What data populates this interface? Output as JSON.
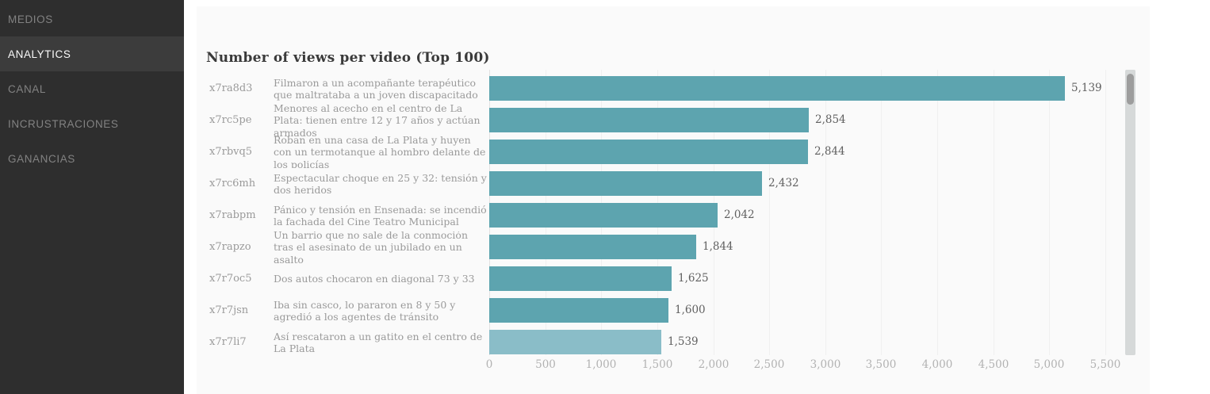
{
  "sidebar": {
    "items": [
      {
        "label": "MEDIOS",
        "active": false
      },
      {
        "label": "ANALYTICS",
        "active": true
      },
      {
        "label": "CANAL",
        "active": false
      },
      {
        "label": "INCRUSTRACIONES",
        "active": false
      },
      {
        "label": "GANANCIAS",
        "active": false
      }
    ]
  },
  "chart": {
    "title": "Number of views per video (Top 100)"
  },
  "chart_data": {
    "type": "bar",
    "orientation": "horizontal",
    "title": "Number of views per video (Top 100)",
    "xlim": [
      0,
      5620
    ],
    "x_tick_step": 500,
    "x_ticks": [
      "0",
      "500",
      "1,000",
      "1,500",
      "2,000",
      "2,500",
      "3,000",
      "3,500",
      "4,000",
      "4,500",
      "5,000",
      "5,500"
    ],
    "grid": true,
    "rows": [
      {
        "id": "x7ra8d3",
        "label": "Filmaron a un acompañante terapéutico que maltrataba a un joven discapacitado",
        "value": 5139,
        "value_label": "5,139",
        "color": "#5da4af"
      },
      {
        "id": "x7rc5pe",
        "label": "Menores al acecho en el centro de La Plata: tienen entre 12 y 17 años y actúan armados",
        "value": 2854,
        "value_label": "2,854",
        "color": "#5da4af"
      },
      {
        "id": "x7rbvq5",
        "label": "Roban en una casa de La Plata y huyen con un termotanque al hombro delante de los policías",
        "value": 2844,
        "value_label": "2,844",
        "color": "#5da4af"
      },
      {
        "id": "x7rc6mh",
        "label": "Espectacular choque en 25 y 32: tensión y dos heridos",
        "value": 2432,
        "value_label": "2,432",
        "color": "#5da4af"
      },
      {
        "id": "x7rabpm",
        "label": "Pánico y tensión en Ensenada: se incendió la fachada del Cine Teatro Municipal",
        "value": 2042,
        "value_label": "2,042",
        "color": "#5da4af"
      },
      {
        "id": "x7rapzo",
        "label": "Un barrio que no sale de la conmoción tras el asesinato de un jubilado en un asalto",
        "value": 1844,
        "value_label": "1,844",
        "color": "#5da4af"
      },
      {
        "id": "x7r7oc5",
        "label": "Dos autos chocaron en diagonal 73 y 33",
        "value": 1625,
        "value_label": "1,625",
        "color": "#5da4af"
      },
      {
        "id": "x7r7jsn",
        "label": "Iba sin casco, lo pararon en 8 y 50 y agredió a los agentes de tránsito",
        "value": 1600,
        "value_label": "1,600",
        "color": "#5da4af"
      },
      {
        "id": "x7r7li7",
        "label": "Así rescataron a un gatito en el centro de La Plata",
        "value": 1539,
        "value_label": "1,539",
        "color": "#8abdc8"
      }
    ]
  },
  "colors": {
    "bar_default": "#5da4af",
    "bar_highlight": "#8abdc8",
    "sidebar_bg": "#2e2e2e",
    "sidebar_active_bg": "#3c3c3c",
    "panel_bg": "#fafafa"
  }
}
